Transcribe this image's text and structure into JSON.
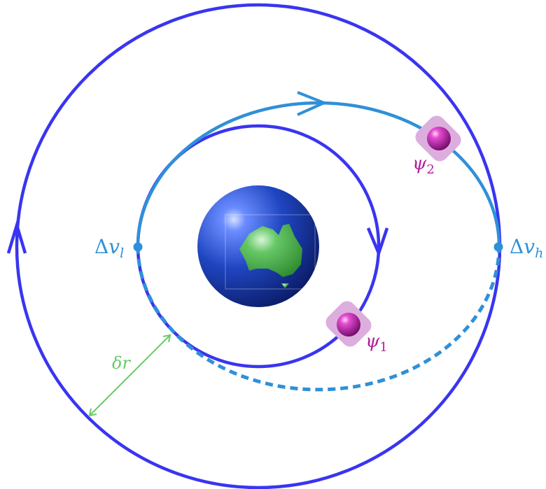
{
  "labels": {
    "dv_low": {
      "delta": "Δ",
      "var": "v",
      "sub": "l"
    },
    "dv_high": {
      "delta": "Δ",
      "var": "v",
      "sub": "h"
    },
    "psi1": {
      "var": "ψ",
      "sub": "1"
    },
    "psi2": {
      "var": "ψ",
      "sub": "2"
    },
    "dr": {
      "delta": "δ",
      "var": "r"
    }
  },
  "colors": {
    "orbit": "#3a35f0",
    "transfer": "#2f90d8",
    "delta_v": "#2f90d8",
    "dr": "#66cc66",
    "satellite": "#b1209a",
    "satellite_halo": "#dcaede",
    "earth_ocean": "#1c3fb8",
    "earth_land": "#4cae4c"
  },
  "icons": {
    "earth": "earth-icon",
    "satellite1": "satellite-icon",
    "satellite2": "satellite-icon"
  }
}
